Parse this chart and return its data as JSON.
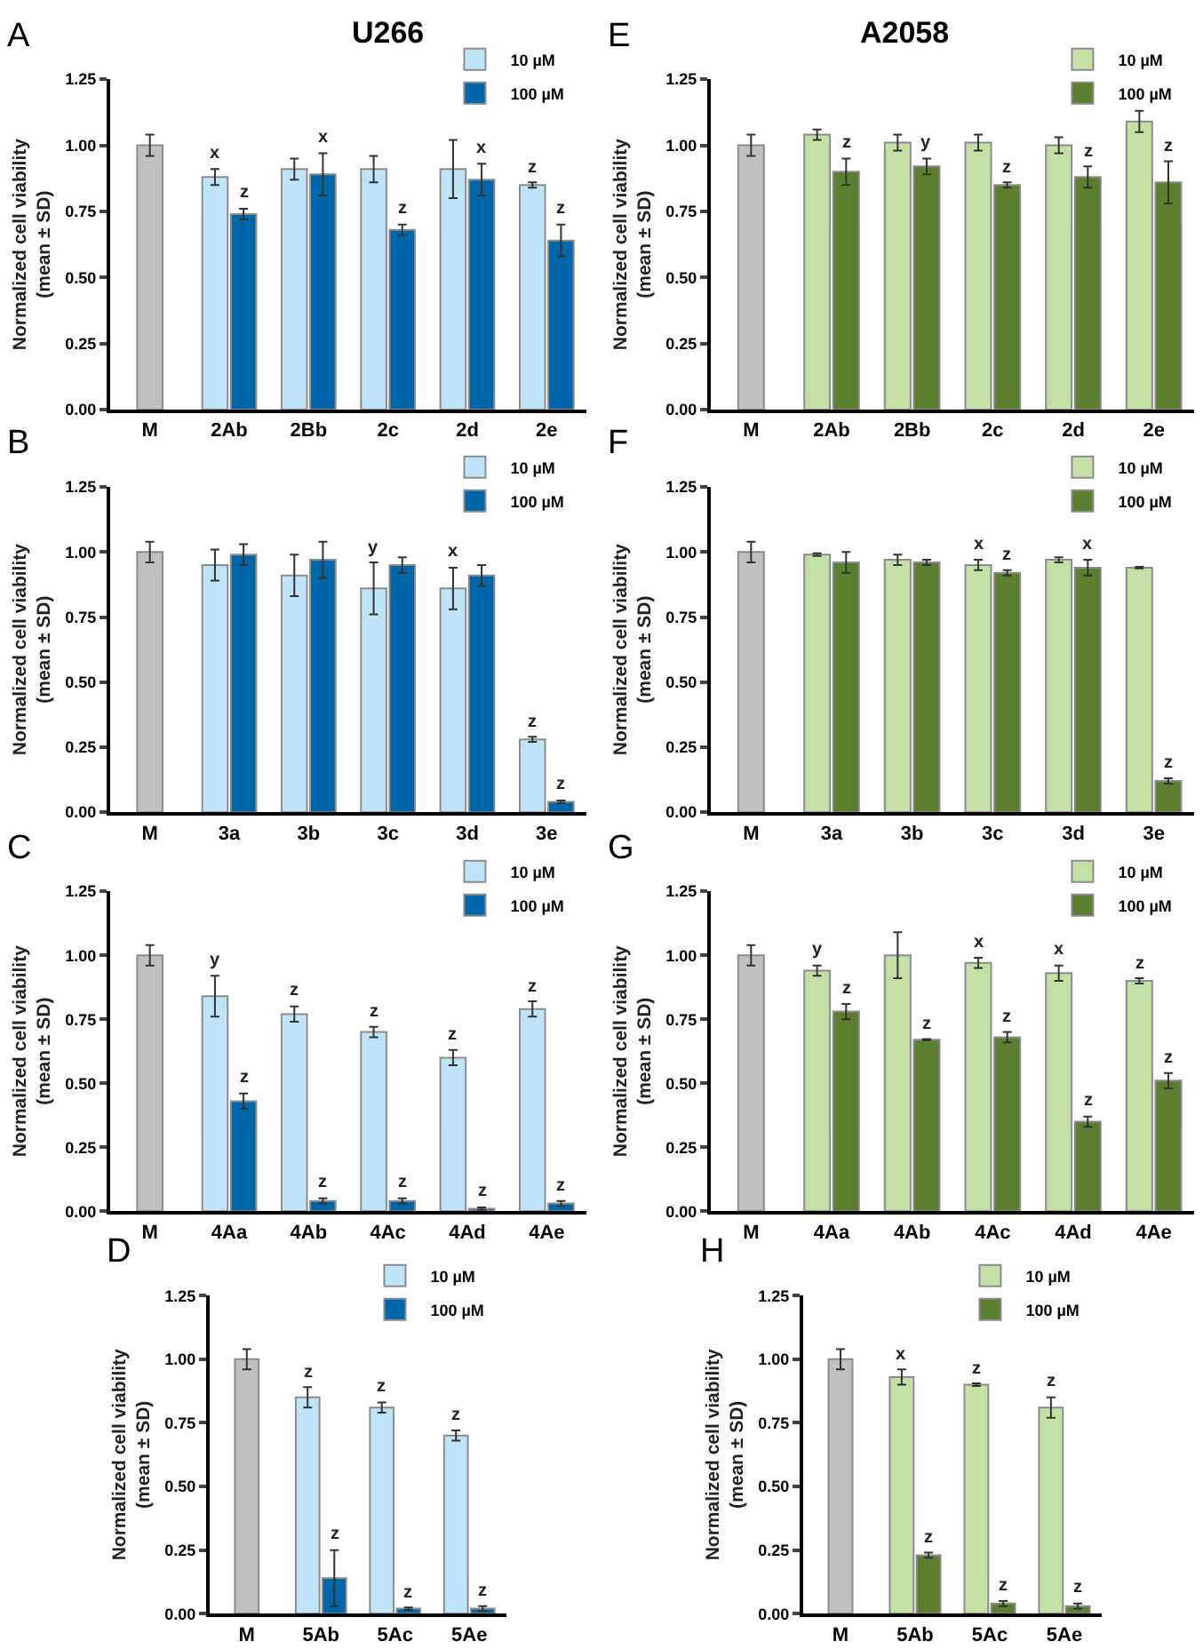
{
  "chart_data": [
    {
      "type": "bar",
      "title": "U266",
      "annotations": [
        "A"
      ],
      "ylabel": "Normalized cell viability\n(mean ± SD)",
      "categories": [
        "M",
        "2Ab",
        "2Bb",
        "2c",
        "2d",
        "2e"
      ],
      "ylim": [
        0,
        1.25
      ],
      "yticks": [
        {
          "value": 0,
          "label": "0.00"
        },
        {
          "value": 0.25,
          "label": "0.25"
        },
        {
          "value": 0.5,
          "label": "0.50"
        },
        {
          "value": 0.75,
          "label": "0.75"
        },
        {
          "value": 1,
          "label": "1.00"
        },
        {
          "value": 1.25,
          "label": "1.25"
        }
      ],
      "legend": "top right",
      "series": [
        {
          "color": "#c0c0c0",
          "values": [
            1.0,
            null,
            null,
            null,
            null,
            null
          ],
          "errors": [
            0.04,
            null,
            null,
            null,
            null,
            null
          ]
        },
        {
          "name": "10 µM",
          "color": "#bde4f9",
          "values": [
            null,
            0.88,
            0.91,
            0.91,
            0.91,
            0.85
          ],
          "errors": [
            null,
            0.03,
            0.04,
            0.05,
            0.11,
            0.01
          ],
          "value_labels": [
            null,
            "x",
            null,
            null,
            null,
            "z"
          ]
        },
        {
          "name": "100 µM",
          "color": "#0066aa",
          "values": [
            null,
            0.74,
            0.89,
            0.68,
            0.87,
            0.64
          ],
          "errors": [
            null,
            0.02,
            0.08,
            0.02,
            0.06,
            0.06
          ],
          "value_labels": [
            null,
            "z",
            "x",
            "z",
            "x",
            "z"
          ]
        }
      ]
    },
    {
      "type": "bar",
      "annotations": [
        "B"
      ],
      "ylabel": "Normalized cell viability\n(mean ± SD)",
      "categories": [
        "M",
        "3a",
        "3b",
        "3c",
        "3d",
        "3e"
      ],
      "ylim": [
        0,
        1.25
      ],
      "yticks": [
        {
          "value": 0,
          "label": "0.00"
        },
        {
          "value": 0.25,
          "label": "0.25"
        },
        {
          "value": 0.5,
          "label": "0.50"
        },
        {
          "value": 0.75,
          "label": "0.75"
        },
        {
          "value": 1,
          "label": "1.00"
        },
        {
          "value": 1.25,
          "label": "1.25"
        }
      ],
      "legend": "top right",
      "series": [
        {
          "color": "#c0c0c0",
          "values": [
            1.0,
            null,
            null,
            null,
            null,
            null
          ],
          "errors": [
            0.04,
            null,
            null,
            null,
            null,
            null
          ]
        },
        {
          "name": "10 µM",
          "color": "#bde4f9",
          "values": [
            null,
            0.95,
            0.91,
            0.86,
            0.86,
            0.28
          ],
          "errors": [
            null,
            0.06,
            0.08,
            0.1,
            0.08,
            0.01
          ],
          "value_labels": [
            null,
            null,
            null,
            "y",
            "x",
            "z"
          ]
        },
        {
          "name": "100 µM",
          "color": "#0066aa",
          "values": [
            null,
            0.99,
            0.97,
            0.95,
            0.91,
            0.04
          ],
          "errors": [
            null,
            0.04,
            0.07,
            0.03,
            0.04,
            0.005
          ],
          "value_labels": [
            null,
            null,
            null,
            null,
            null,
            "z"
          ]
        }
      ]
    },
    {
      "type": "bar",
      "annotations": [
        "C"
      ],
      "ylabel": "Normalized cell viability\n(mean ± SD)",
      "categories": [
        "M",
        "4Aa",
        "4Ab",
        "4Ac",
        "4Ad",
        "4Ae"
      ],
      "ylim": [
        0,
        1.25
      ],
      "yticks": [
        {
          "value": 0,
          "label": "0.00"
        },
        {
          "value": 0.25,
          "label": "0.25"
        },
        {
          "value": 0.5,
          "label": "0.50"
        },
        {
          "value": 0.75,
          "label": "0.75"
        },
        {
          "value": 1,
          "label": "1.00"
        },
        {
          "value": 1.25,
          "label": "1.25"
        }
      ],
      "legend": "top right",
      "series": [
        {
          "color": "#c0c0c0",
          "values": [
            1.0,
            null,
            null,
            null,
            null,
            null
          ],
          "errors": [
            0.04,
            null,
            null,
            null,
            null,
            null
          ]
        },
        {
          "name": "10 µM",
          "color": "#bde4f9",
          "values": [
            null,
            0.84,
            0.77,
            0.7,
            0.6,
            0.79
          ],
          "errors": [
            null,
            0.08,
            0.03,
            0.02,
            0.03,
            0.03
          ],
          "value_labels": [
            null,
            "y",
            "z",
            "z",
            "z",
            "z"
          ]
        },
        {
          "name": "100 µM",
          "color": "#0066aa",
          "values": [
            null,
            0.43,
            0.04,
            0.04,
            0.01,
            0.03
          ],
          "errors": [
            null,
            0.03,
            0.01,
            0.01,
            0.005,
            0.01
          ],
          "value_labels": [
            null,
            "z",
            "z",
            "z",
            "z",
            "z"
          ]
        }
      ]
    },
    {
      "type": "bar",
      "annotations": [
        "D"
      ],
      "ylabel": "Normalized cell viability\n(mean ± SD)",
      "categories": [
        "M",
        "5Ab",
        "5Ac",
        "5Ae"
      ],
      "ylim": [
        0,
        1.25
      ],
      "yticks": [
        {
          "value": 0,
          "label": "0.00"
        },
        {
          "value": 0.25,
          "label": "0.25"
        },
        {
          "value": 0.5,
          "label": "0.50"
        },
        {
          "value": 0.75,
          "label": "0.75"
        },
        {
          "value": 1,
          "label": "1.00"
        },
        {
          "value": 1.25,
          "label": "1.25"
        }
      ],
      "legend": "top right",
      "series": [
        {
          "color": "#c0c0c0",
          "values": [
            1.0,
            null,
            null,
            null
          ],
          "errors": [
            0.04,
            null,
            null,
            null
          ]
        },
        {
          "name": "10 µM",
          "color": "#bde4f9",
          "values": [
            null,
            0.85,
            0.81,
            0.7
          ],
          "errors": [
            null,
            0.04,
            0.02,
            0.02
          ],
          "value_labels": [
            null,
            "z",
            "z",
            "z"
          ]
        },
        {
          "name": "100 µM",
          "color": "#0066aa",
          "values": [
            null,
            0.14,
            0.02,
            0.02
          ],
          "errors": [
            null,
            0.11,
            0.005,
            0.01
          ],
          "value_labels": [
            null,
            "z",
            "z",
            "z"
          ]
        }
      ]
    },
    {
      "type": "bar",
      "title": "A2058",
      "annotations": [
        "E"
      ],
      "ylabel": "Normalized cell viability\n(mean ± SD)",
      "categories": [
        "M",
        "2Ab",
        "2Bb",
        "2c",
        "2d",
        "2e"
      ],
      "ylim": [
        0,
        1.25
      ],
      "yticks": [
        {
          "value": 0,
          "label": "0.00"
        },
        {
          "value": 0.25,
          "label": "0.25"
        },
        {
          "value": 0.5,
          "label": "0.50"
        },
        {
          "value": 0.75,
          "label": "0.75"
        },
        {
          "value": 1,
          "label": "1.00"
        },
        {
          "value": 1.25,
          "label": "1.25"
        }
      ],
      "legend": "top right",
      "series": [
        {
          "color": "#c0c0c0",
          "values": [
            1.0,
            null,
            null,
            null,
            null,
            null
          ],
          "errors": [
            0.04,
            null,
            null,
            null,
            null,
            null
          ]
        },
        {
          "name": "10 µM",
          "color": "#c5e0a5",
          "values": [
            null,
            1.04,
            1.01,
            1.01,
            1.0,
            1.09
          ],
          "errors": [
            null,
            0.02,
            0.03,
            0.03,
            0.03,
            0.04
          ]
        },
        {
          "name": "100 µM",
          "color": "#5b7f2e",
          "values": [
            null,
            0.9,
            0.92,
            0.85,
            0.88,
            0.86
          ],
          "errors": [
            null,
            0.05,
            0.03,
            0.01,
            0.04,
            0.08
          ],
          "value_labels": [
            null,
            "z",
            "y",
            "z",
            "z",
            "z"
          ]
        }
      ]
    },
    {
      "type": "bar",
      "annotations": [
        "F"
      ],
      "ylabel": "Normalized cell viability\n(mean ± SD)",
      "categories": [
        "M",
        "3a",
        "3b",
        "3c",
        "3d",
        "3e"
      ],
      "ylim": [
        0,
        1.25
      ],
      "yticks": [
        {
          "value": 0,
          "label": "0.00"
        },
        {
          "value": 0.25,
          "label": "0.25"
        },
        {
          "value": 0.5,
          "label": "0.50"
        },
        {
          "value": 0.75,
          "label": "0.75"
        },
        {
          "value": 1,
          "label": "1.00"
        },
        {
          "value": 1.25,
          "label": "1.25"
        }
      ],
      "legend": "top right",
      "series": [
        {
          "color": "#c0c0c0",
          "values": [
            1.0,
            null,
            null,
            null,
            null,
            null
          ],
          "errors": [
            0.04,
            null,
            null,
            null,
            null,
            null
          ]
        },
        {
          "name": "10 µM",
          "color": "#c5e0a5",
          "values": [
            null,
            0.99,
            0.97,
            0.95,
            0.97,
            0.94
          ],
          "errors": [
            null,
            0.005,
            0.02,
            0.02,
            0.01,
            0.003
          ],
          "value_labels": [
            null,
            null,
            null,
            "x",
            null,
            null
          ]
        },
        {
          "name": "100 µM",
          "color": "#5b7f2e",
          "values": [
            null,
            0.96,
            0.96,
            0.92,
            0.94,
            0.12
          ],
          "errors": [
            null,
            0.04,
            0.01,
            0.01,
            0.03,
            0.01
          ],
          "value_labels": [
            null,
            null,
            null,
            "z",
            "x",
            "z"
          ]
        }
      ]
    },
    {
      "type": "bar",
      "annotations": [
        "G"
      ],
      "ylabel": "Normalized cell viability\n(mean ± SD)",
      "categories": [
        "M",
        "4Aa",
        "4Ab",
        "4Ac",
        "4Ad",
        "4Ae"
      ],
      "ylim": [
        0,
        1.25
      ],
      "yticks": [
        {
          "value": 0,
          "label": "0.00"
        },
        {
          "value": 0.25,
          "label": "0.25"
        },
        {
          "value": 0.5,
          "label": "0.50"
        },
        {
          "value": 0.75,
          "label": "0.75"
        },
        {
          "value": 1,
          "label": "1.00"
        },
        {
          "value": 1.25,
          "label": "1.25"
        }
      ],
      "legend": "top right",
      "series": [
        {
          "color": "#c0c0c0",
          "values": [
            1.0,
            null,
            null,
            null,
            null,
            null
          ],
          "errors": [
            0.04,
            null,
            null,
            null,
            null,
            null
          ]
        },
        {
          "name": "10 µM",
          "color": "#c5e0a5",
          "values": [
            null,
            0.94,
            1.0,
            0.97,
            0.93,
            0.9
          ],
          "errors": [
            null,
            0.02,
            0.09,
            0.02,
            0.03,
            0.01
          ],
          "value_labels": [
            null,
            "y",
            null,
            "x",
            "x",
            "z"
          ]
        },
        {
          "name": "100 µM",
          "color": "#5b7f2e",
          "values": [
            null,
            0.78,
            0.67,
            0.68,
            0.35,
            0.51
          ],
          "errors": [
            null,
            0.03,
            0.003,
            0.02,
            0.02,
            0.03
          ],
          "value_labels": [
            null,
            "z",
            "z",
            "z",
            "z",
            "z"
          ]
        }
      ]
    },
    {
      "type": "bar",
      "annotations": [
        "H"
      ],
      "ylabel": "Normalized cell viability\n(mean ± SD)",
      "categories": [
        "M",
        "5Ab",
        "5Ac",
        "5Ae"
      ],
      "ylim": [
        0,
        1.25
      ],
      "yticks": [
        {
          "value": 0,
          "label": "0.00"
        },
        {
          "value": 0.25,
          "label": "0.25"
        },
        {
          "value": 0.5,
          "label": "0.50"
        },
        {
          "value": 0.75,
          "label": "0.75"
        },
        {
          "value": 1,
          "label": "1.00"
        },
        {
          "value": 1.25,
          "label": "1.25"
        }
      ],
      "legend": "top right",
      "series": [
        {
          "color": "#c0c0c0",
          "values": [
            1.0,
            null,
            null,
            null
          ],
          "errors": [
            0.04,
            null,
            null,
            null
          ]
        },
        {
          "name": "10 µM",
          "color": "#c5e0a5",
          "values": [
            null,
            0.93,
            0.9,
            0.81
          ],
          "errors": [
            null,
            0.03,
            0.005,
            0.04
          ],
          "value_labels": [
            null,
            "x",
            "z",
            "z"
          ]
        },
        {
          "name": "100 µM",
          "color": "#5b7f2e",
          "values": [
            null,
            0.23,
            0.04,
            0.03
          ],
          "errors": [
            null,
            0.01,
            0.01,
            0.01
          ],
          "value_labels": [
            null,
            "z",
            "z",
            "z"
          ]
        }
      ]
    }
  ]
}
